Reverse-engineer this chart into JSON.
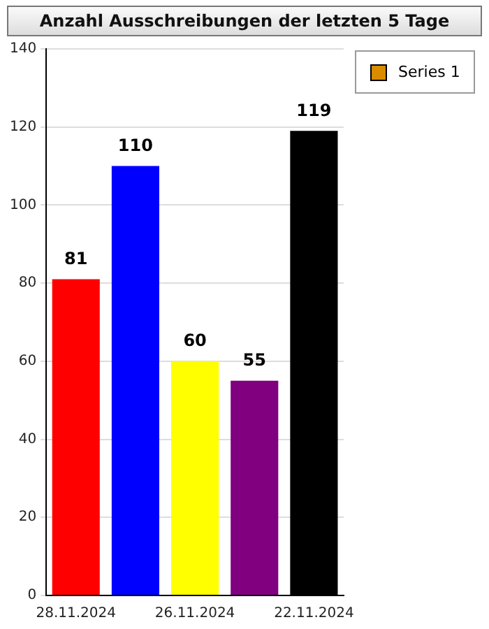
{
  "chart_data": {
    "type": "bar",
    "title": "Anzahl Ausschreibungen der letzten 5 Tage",
    "categories": [
      "28.11.2024",
      null,
      "26.11.2024",
      null,
      "22.11.2024"
    ],
    "series": [
      {
        "name": "Series 1",
        "color": "#d98c00",
        "colors": [
          "#ff0000",
          "#0000ff",
          "#ffff00",
          "#800080",
          "#000000"
        ],
        "values": [
          81,
          110,
          60,
          55,
          119
        ]
      }
    ],
    "ylim": [
      0,
      140
    ],
    "yticks": [
      0,
      20,
      40,
      60,
      80,
      100,
      120,
      140
    ],
    "grid": "y",
    "legend": "top right",
    "data_labels": true
  }
}
